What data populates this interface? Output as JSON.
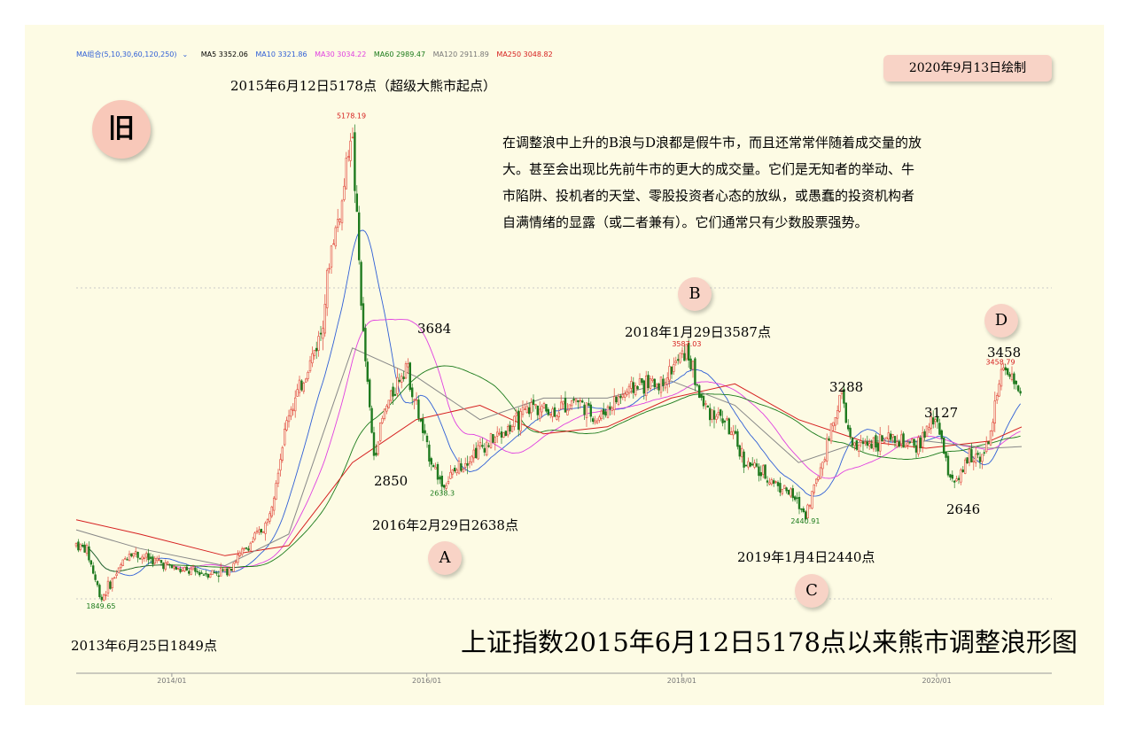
{
  "ma_legend": {
    "selector": "MA组合(5,10,30,60,120,250)",
    "items": [
      {
        "label": "MA5 3352.06",
        "color": "#000000"
      },
      {
        "label": "MA10 3321.86",
        "color": "#2f5fd6"
      },
      {
        "label": "MA30 3034.22",
        "color": "#e040e0"
      },
      {
        "label": "MA60 2989.47",
        "color": "#1a7a1a"
      },
      {
        "label": "MA120 2911.89",
        "color": "#777777"
      },
      {
        "label": "MA250 3048.82",
        "color": "#d62020"
      }
    ]
  },
  "date_badge": "2020年9月13日绘制",
  "old_badge": "旧",
  "note_lines": [
    "在调整浪中上升的B浪与D浪都是假牛市，而且还常常伴随着成交量的放",
    "大。甚至会出现比先前牛市的更大的成交量。它们是无知者的举动、牛",
    "市陷阱、投机者的天堂、零股投资者心态的放纵，或愚蠢的投资机构者",
    "自满情绪的显露（或二者兼有）。它们通常只有少数股票强势。"
  ],
  "waves": {
    "A": "A",
    "B": "B",
    "C": "C",
    "D": "D"
  },
  "annotations": {
    "peak_2015": "2015年6月12日5178点（超级大熊市起点）",
    "low_2013": "2013年6月25日1849点",
    "low_2016": "2016年2月29日2638点",
    "high_2018": "2018年1月29日3587点",
    "low_2019": "2019年1月4日2440点",
    "p3684": "3684",
    "p2850": "2850",
    "p3288": "3288",
    "p3127": "3127",
    "p2646": "2646",
    "p3458": "3458"
  },
  "main_title": "上证指数2015年6月12日5178点以来熊市调整浪形图",
  "colors": {
    "up": "#e0453a",
    "down": "#1f7a1f",
    "peak_label": "#d62020",
    "low_label": "#1a7a1a",
    "grid": "#cccccc"
  },
  "chart_data": {
    "type": "line",
    "title": "上证指数2015年6月12日5178点以来熊市调整浪形图",
    "xlabel": "",
    "ylabel": "",
    "x_ticks": [
      "2014/01",
      "2016/01",
      "2018/01",
      "2020/01"
    ],
    "x_range": [
      "2013-04",
      "2020-09"
    ],
    "y_range": [
      1700,
      5300
    ],
    "grid": "horizontal dotted",
    "close_series": {
      "name": "",
      "x": [
        "2013-04",
        "2013-05",
        "2013-06-25",
        "2013-08",
        "2013-09",
        "2013-10",
        "2013-12",
        "2014-02",
        "2014-04",
        "2014-06",
        "2014-08",
        "2014-10",
        "2014-12",
        "2015-01",
        "2015-03",
        "2015-04",
        "2015-05",
        "2015-06-12",
        "2015-07",
        "2015-08",
        "2015-09",
        "2015-11",
        "2016-01",
        "2016-02-29",
        "2016-05",
        "2016-07",
        "2016-09",
        "2016-11",
        "2017-01",
        "2017-03",
        "2017-05",
        "2017-07",
        "2017-09",
        "2017-11",
        "2018-01-29",
        "2018-03",
        "2018-05",
        "2018-07",
        "2018-09",
        "2018-11",
        "2019-01-04",
        "2019-02",
        "2019-04",
        "2019-05",
        "2019-07",
        "2019-09",
        "2019-11",
        "2020-01",
        "2020-02",
        "2020-03",
        "2020-04",
        "2020-05",
        "2020-06",
        "2020-07",
        "2020-08",
        "2020-09"
      ],
      "values": [
        2230,
        2190,
        1849,
        2050,
        2180,
        2150,
        2100,
        2040,
        2030,
        2040,
        2200,
        2380,
        3150,
        3300,
        3700,
        4300,
        4600,
        5178,
        3700,
        2850,
        3150,
        3500,
        2900,
        2638,
        2850,
        2950,
        3050,
        3200,
        3150,
        3250,
        3100,
        3250,
        3350,
        3350,
        3587,
        3200,
        3100,
        2800,
        2700,
        2600,
        2440,
        2750,
        3288,
        2900,
        2950,
        2950,
        2900,
        3127,
        2750,
        2646,
        2850,
        2850,
        2950,
        3458,
        3350,
        3300
      ]
    },
    "moving_averages": [
      {
        "name": "MA250",
        "x": [
          "2013-04",
          "2013-10",
          "2014-06",
          "2014-12",
          "2015-06",
          "2015-12",
          "2016-06",
          "2016-12",
          "2017-06",
          "2017-12",
          "2018-06",
          "2018-12",
          "2019-06",
          "2019-12",
          "2020-06",
          "2020-09"
        ],
        "values": [
          2400,
          2300,
          2150,
          2220,
          2800,
          3100,
          3200,
          3000,
          3050,
          3250,
          3350,
          3100,
          2950,
          2900,
          2950,
          3048.82
        ]
      },
      {
        "name": "MA120",
        "x": [
          "2013-04",
          "2013-10",
          "2014-06",
          "2014-12",
          "2015-06",
          "2015-12",
          "2016-06",
          "2016-12",
          "2017-06",
          "2017-12",
          "2018-06",
          "2018-12",
          "2019-06",
          "2019-12",
          "2020-06",
          "2020-09"
        ],
        "values": [
          2330,
          2200,
          2080,
          2300,
          3600,
          3400,
          3100,
          3250,
          3250,
          3370,
          3200,
          2800,
          2950,
          2950,
          2900,
          2911.89
        ]
      }
    ],
    "marked_points": [
      {
        "x": "2013-06-25",
        "y": 1849.65
      },
      {
        "x": "2015-06-12",
        "y": 5178.19
      },
      {
        "x": "2016-02-29",
        "y": 2638.3
      },
      {
        "x": "2018-01-29",
        "y": 3587.03
      },
      {
        "x": "2019-01-04",
        "y": 2440.91
      },
      {
        "x": "2020-07",
        "y": 3458.79
      }
    ]
  }
}
